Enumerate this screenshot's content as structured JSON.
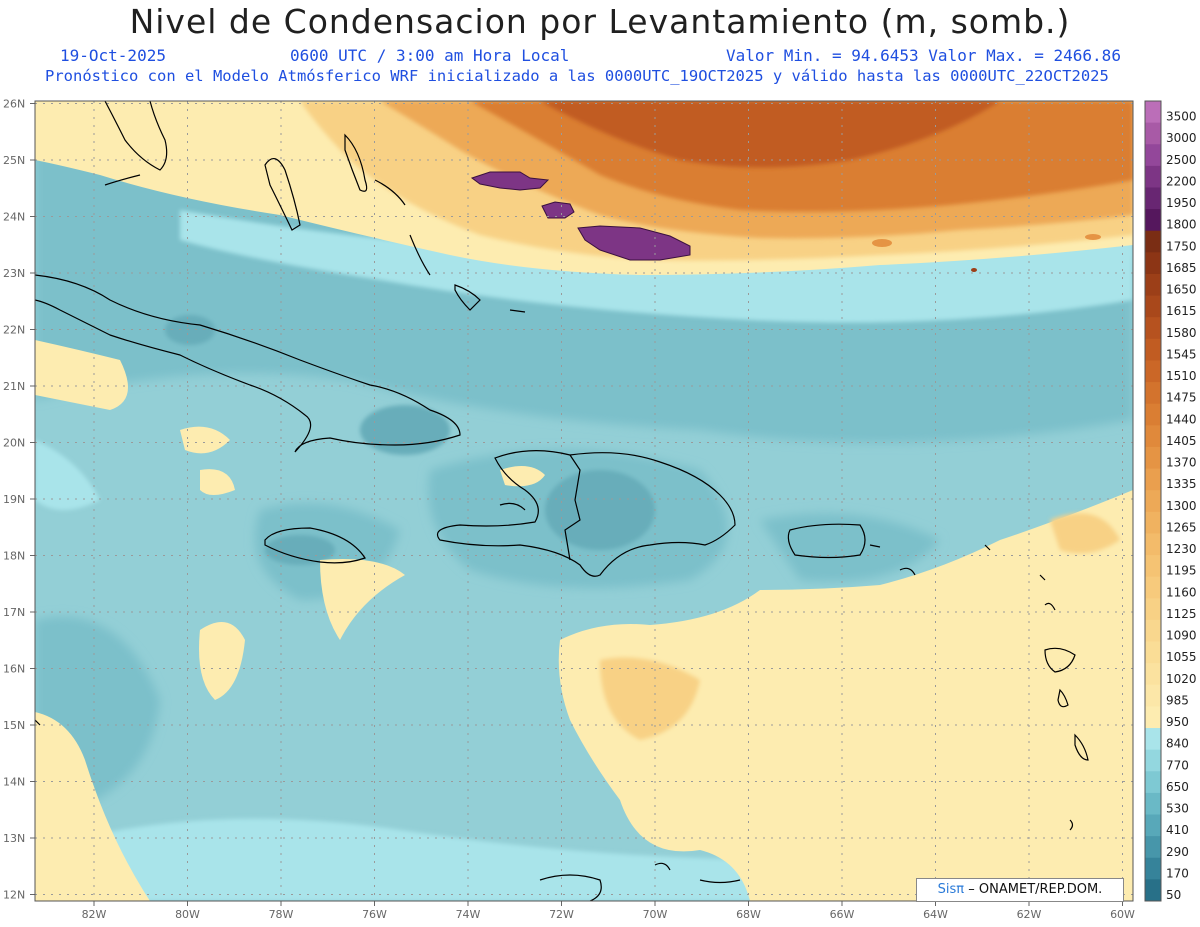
{
  "header": {
    "title": "Nivel de Condensacion por Levantamiento (m, somb.)",
    "date": "19-Oct-2025",
    "time": "0600 UTC / 3:00 am Hora Local",
    "stats": "Valor Min. = 94.6453   Valor Max. = 2466.86",
    "forecast_note": "Pronóstico con el Modelo Atmósferico WRF inicializado a las 0000UTC_19OCT2025 y válido hasta las  0000UTC_22OCT2025"
  },
  "axes": {
    "lat_labels": [
      "26N",
      "25N",
      "24N",
      "23N",
      "22N",
      "21N",
      "20N",
      "19N",
      "18N",
      "17N",
      "16N",
      "15N",
      "14N",
      "13N",
      "12N"
    ],
    "lon_labels": [
      "82W",
      "80W",
      "78W",
      "76W",
      "74W",
      "72W",
      "70W",
      "68W",
      "66W",
      "64W",
      "62W",
      "60W"
    ]
  },
  "colorbar": {
    "labels": [
      "3500",
      "3000",
      "2500",
      "2200",
      "1950",
      "1800",
      "1750",
      "1685",
      "1650",
      "1615",
      "1580",
      "1545",
      "1510",
      "1475",
      "1440",
      "1405",
      "1370",
      "1335",
      "1300",
      "1265",
      "1230",
      "1195",
      "1160",
      "1125",
      "1090",
      "1055",
      "1020",
      "985",
      "950",
      "840",
      "770",
      "650",
      "530",
      "410",
      "290",
      "170",
      "50"
    ],
    "colors": [
      "#bb6eb8",
      "#a85aa6",
      "#93479a",
      "#7d3585",
      "#682672",
      "#55175d",
      "#7a2d14",
      "#8c3515",
      "#9c3f18",
      "#a9481b",
      "#b6521f",
      "#c15c22",
      "#cb6727",
      "#d3732d",
      "#da7e33",
      "#e0893b",
      "#e59444",
      "#ea9f4e",
      "#eda957",
      "#f0b260",
      "#f3bb6a",
      "#f5c373",
      "#f7ca7c",
      "#f8d185",
      "#f9d78e",
      "#fadd96",
      "#fbe29f",
      "#fce7a8",
      "#fdecb0",
      "#a9e4ea",
      "#93d7df",
      "#7ec9d3",
      "#6ab9c6",
      "#58a8b9",
      "#4796aa",
      "#36839a",
      "#287088"
    ]
  },
  "credit": {
    "brand": "Sisπ",
    "text": "– ONAMET/REP.DOM."
  },
  "colors": {
    "ocean_base": "#93cfd6",
    "land_outline": "#000000",
    "title_blue": "#1f4fe0"
  }
}
